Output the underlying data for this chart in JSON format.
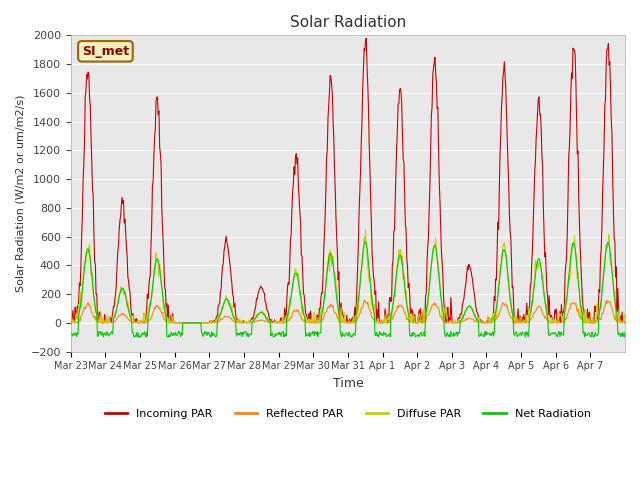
{
  "title": "Solar Radiation",
  "ylabel": "Solar Radiation (W/m2 or um/m2/s)",
  "xlabel": "Time",
  "ylim": [
    -200,
    2000
  ],
  "yticks": [
    -200,
    0,
    200,
    400,
    600,
    800,
    1000,
    1200,
    1400,
    1600,
    1800,
    2000
  ],
  "annotation": "SI_met",
  "bg_color": "#e8e8e8",
  "grid_color": "#ffffff",
  "n_days": 16,
  "pts_per_day": 48,
  "x_labels": [
    "Mar 23",
    "Mar 24",
    "Mar 25",
    "Mar 26",
    "Mar 27",
    "Mar 28",
    "Mar 29",
    "Mar 30",
    "Mar 31",
    "Apr 1",
    "Apr 2",
    "Apr 3",
    "Apr 4",
    "Apr 5",
    "Apr 6",
    "Apr 7"
  ],
  "incoming_peaks": [
    1780,
    835,
    1540,
    0,
    570,
    250,
    1190,
    1670,
    1950,
    1630,
    1860,
    400,
    1760,
    1540,
    1920,
    1930
  ],
  "colors": {
    "incoming": "#cc0000",
    "reflected": "#ff8800",
    "diffuse": "#cccc00",
    "net": "#00cc00"
  },
  "labels": {
    "incoming": "Incoming PAR",
    "reflected": "Reflected PAR",
    "diffuse": "Diffuse PAR",
    "net": "Net Radiation"
  }
}
